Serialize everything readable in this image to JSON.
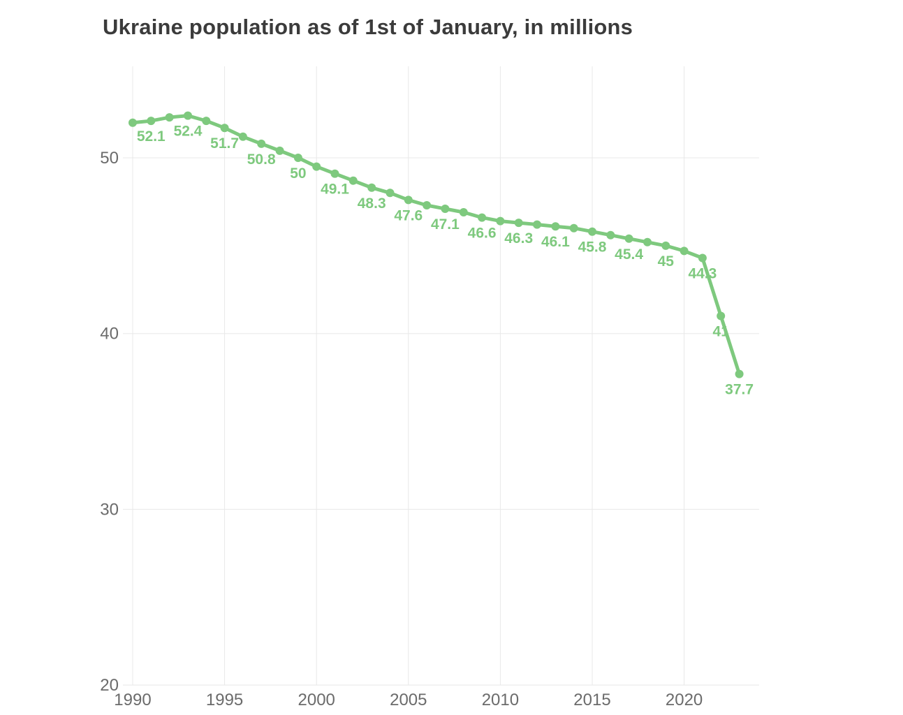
{
  "title": "Ukraine population as of 1st of January, in millions",
  "colors": {
    "line": "#7ec97e",
    "point": "#7ec97e",
    "value_label": "#7ec97e",
    "title_text": "#3b3b3b",
    "axis_text": "#6b6b6b",
    "gridline": "#e8e8e8",
    "background": "#ffffff"
  },
  "chart_data": {
    "type": "line",
    "title": "Ukraine population as of 1st of January, in millions",
    "xlabel": "",
    "ylabel": "",
    "legend": "none",
    "grid": true,
    "x_ticks": [
      1990,
      1995,
      2000,
      2005,
      2010,
      2015,
      2020
    ],
    "y_ticks": [
      20,
      30,
      40,
      50
    ],
    "xlim": [
      1989.4,
      2024.1
    ],
    "ylim": [
      20,
      55.2
    ],
    "series": [
      {
        "points": [
          {
            "year": 1990,
            "value": 52.0,
            "label": null
          },
          {
            "year": 1991,
            "value": 52.1,
            "label": "52.1"
          },
          {
            "year": 1992,
            "value": 52.3,
            "label": null
          },
          {
            "year": 1993,
            "value": 52.4,
            "label": "52.4"
          },
          {
            "year": 1994,
            "value": 52.1,
            "label": null
          },
          {
            "year": 1995,
            "value": 51.7,
            "label": "51.7"
          },
          {
            "year": 1996,
            "value": 51.2,
            "label": null
          },
          {
            "year": 1997,
            "value": 50.8,
            "label": "50.8"
          },
          {
            "year": 1998,
            "value": 50.4,
            "label": null
          },
          {
            "year": 1999,
            "value": 50.0,
            "label": "50"
          },
          {
            "year": 2000,
            "value": 49.5,
            "label": null
          },
          {
            "year": 2001,
            "value": 49.1,
            "label": "49.1"
          },
          {
            "year": 2002,
            "value": 48.7,
            "label": null
          },
          {
            "year": 2003,
            "value": 48.3,
            "label": "48.3"
          },
          {
            "year": 2004,
            "value": 48.0,
            "label": null
          },
          {
            "year": 2005,
            "value": 47.6,
            "label": "47.6"
          },
          {
            "year": 2006,
            "value": 47.3,
            "label": null
          },
          {
            "year": 2007,
            "value": 47.1,
            "label": "47.1"
          },
          {
            "year": 2008,
            "value": 46.9,
            "label": null
          },
          {
            "year": 2009,
            "value": 46.6,
            "label": "46.6"
          },
          {
            "year": 2010,
            "value": 46.4,
            "label": null
          },
          {
            "year": 2011,
            "value": 46.3,
            "label": "46.3"
          },
          {
            "year": 2012,
            "value": 46.2,
            "label": null
          },
          {
            "year": 2013,
            "value": 46.1,
            "label": "46.1"
          },
          {
            "year": 2014,
            "value": 46.0,
            "label": null
          },
          {
            "year": 2015,
            "value": 45.8,
            "label": "45.8"
          },
          {
            "year": 2016,
            "value": 45.6,
            "label": null
          },
          {
            "year": 2017,
            "value": 45.4,
            "label": "45.4"
          },
          {
            "year": 2018,
            "value": 45.2,
            "label": null
          },
          {
            "year": 2019,
            "value": 45.0,
            "label": "45"
          },
          {
            "year": 2020,
            "value": 44.7,
            "label": null
          },
          {
            "year": 2021,
            "value": 44.3,
            "label": "44.3"
          },
          {
            "year": 2022,
            "value": 41.0,
            "label": "41"
          },
          {
            "year": 2023,
            "value": 37.7,
            "label": "37.7"
          }
        ]
      }
    ]
  }
}
